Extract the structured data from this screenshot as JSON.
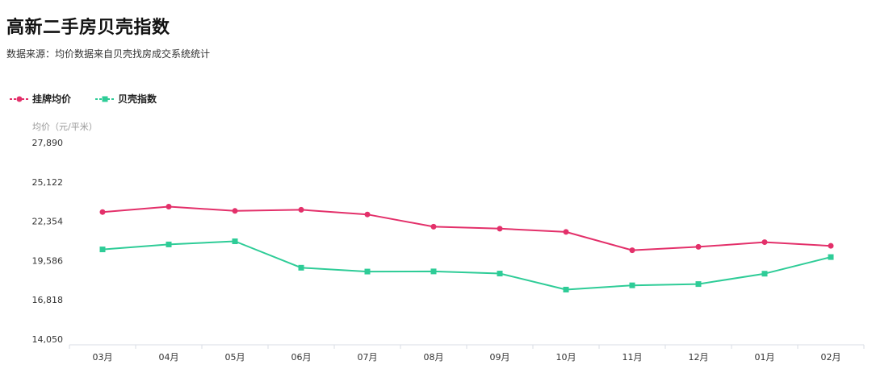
{
  "header": {
    "title": "高新二手房贝壳指数",
    "subtitle": "数据来源：均价数据来自贝壳找房成交系统统计"
  },
  "colors": {
    "series1": "#e3306a",
    "series2": "#2ecc97",
    "axis": "#d8dde6",
    "tick_text": "#333333",
    "ylabel_text": "#999999"
  },
  "chart_data": {
    "type": "line",
    "title": "高新二手房贝壳指数",
    "subtitle": "数据来源：均价数据来自贝壳找房成交系统统计",
    "ylabel": "均价（元/平米）",
    "xlabel": "",
    "categories": [
      "03月",
      "04月",
      "05月",
      "06月",
      "07月",
      "08月",
      "09月",
      "10月",
      "11月",
      "12月",
      "01月",
      "02月"
    ],
    "ylim": [
      14050,
      27890
    ],
    "yticks": [
      14050,
      16818,
      19586,
      22354,
      25122,
      27890
    ],
    "ytick_labels": [
      "14,050",
      "16,818",
      "19,586",
      "22,354",
      "25,122",
      "27,890"
    ],
    "grid": false,
    "legend_position": "top-left",
    "series": [
      {
        "name": "挂牌均价",
        "marker": "circle",
        "values": [
          23000,
          23380,
          23080,
          23160,
          22830,
          21970,
          21830,
          21600,
          20310,
          20550,
          20880,
          20620
        ]
      },
      {
        "name": "贝壳指数",
        "marker": "square",
        "values": [
          20370,
          20720,
          20940,
          19080,
          18810,
          18820,
          18670,
          17540,
          17840,
          17930,
          18660,
          19830
        ]
      }
    ]
  }
}
